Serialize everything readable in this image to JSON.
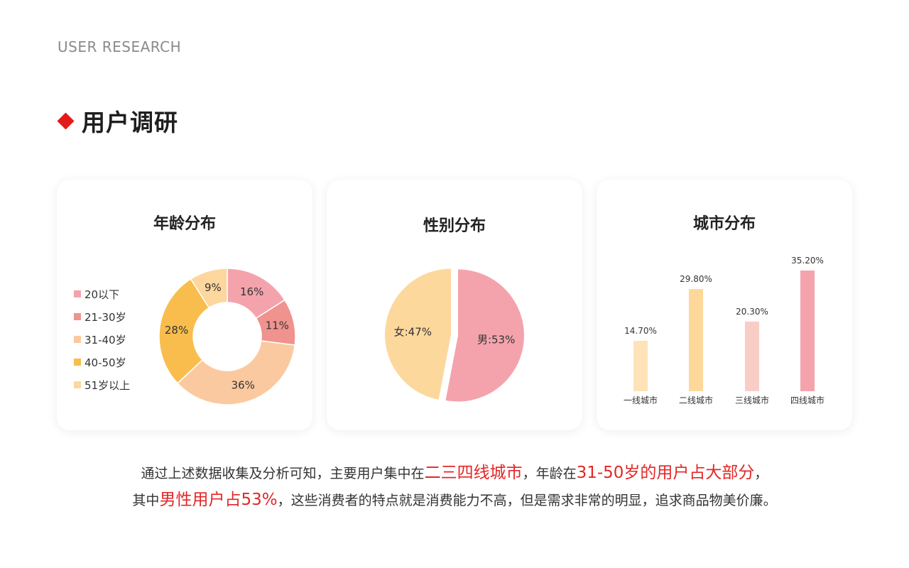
{
  "page": {
    "eyebrow": "USER RESEARCH",
    "title": "用户调研"
  },
  "colors": {
    "accent": "#e41a1a",
    "highlight": "#e32626"
  },
  "chart_data": [
    {
      "type": "pie",
      "title": "年龄分布",
      "donut": true,
      "legend_position": "left",
      "categories": [
        "20以下",
        "21-30岁",
        "31-40岁",
        "40-50岁",
        "51岁以上"
      ],
      "values": [
        16,
        11,
        36,
        28,
        9
      ],
      "labels": [
        "16%",
        "11%",
        "36%",
        "28%",
        "9%"
      ],
      "colors": [
        "#f4a3ad",
        "#f0938f",
        "#fbc9a0",
        "#f8bd4c",
        "#fdd79e"
      ]
    },
    {
      "type": "pie",
      "title": "性别分布",
      "donut": false,
      "categories": [
        "男",
        "女"
      ],
      "values": [
        53,
        47
      ],
      "labels": [
        "男:53%",
        "女:47%"
      ],
      "colors": [
        "#f4a3ad",
        "#fdd89d"
      ]
    },
    {
      "type": "bar",
      "title": "城市分布",
      "categories": [
        "一线城市",
        "二线城市",
        "三线城市",
        "四线城市"
      ],
      "values": [
        14.7,
        29.8,
        20.3,
        35.2
      ],
      "labels": [
        "14.70%",
        "29.80%",
        "20.30%",
        "35.20%"
      ],
      "colors": [
        "#fde3b7",
        "#fdd89a",
        "#f8cdc6",
        "#f4a3ad"
      ],
      "grid": false
    }
  ],
  "summary": {
    "line1": {
      "t1": "通过上述数据收集及分析可知，主要用户集中在",
      "h1": "二三四线城市",
      "t2": "，年龄在",
      "h2": "31-50岁的用户占大部分",
      "t3": "，"
    },
    "line2": {
      "t1": "其中",
      "h1": "男性用户占53%",
      "t2": "，这些消费者的特点就是消费能力不高，但是需求非常的明显，追求商品物美价廉。"
    }
  }
}
